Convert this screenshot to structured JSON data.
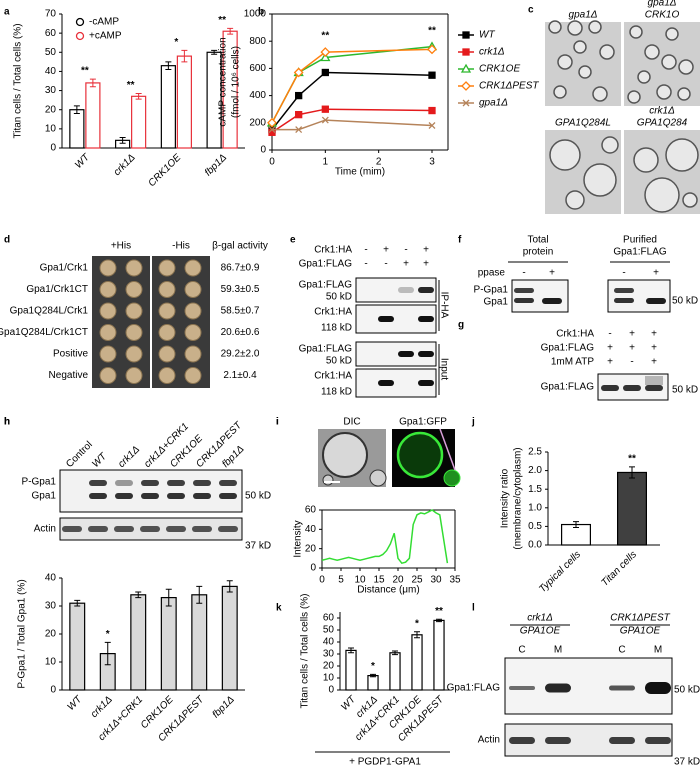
{
  "chart_data": [
    {
      "type": "bar",
      "panel": "a",
      "ylabel": "Titan cells / Total cells (%)",
      "categories": [
        "WT",
        "crk1Δ",
        "CRK1OE",
        "fbp1Δ"
      ],
      "series": [
        {
          "name": "-cAMP",
          "color": "#000000",
          "values": [
            20,
            4,
            43,
            50
          ],
          "errors": [
            2,
            1.5,
            2,
            1
          ]
        },
        {
          "name": "+cAMP",
          "color": "#e8303a",
          "values": [
            34,
            27,
            48,
            61
          ],
          "errors": [
            2,
            1.5,
            3,
            1.5
          ]
        }
      ],
      "fill": "#ffffff",
      "annotations": [
        "**",
        "**",
        "*",
        "**"
      ],
      "ylim": [
        0,
        70
      ],
      "yticks": [
        0,
        10,
        20,
        30,
        40,
        50,
        60,
        70
      ],
      "legend": "upper left"
    },
    {
      "type": "line",
      "panel": "b",
      "xlabel": "Time (mim)",
      "ylabel": [
        "cAMP concentration",
        "(fmol / 10⁶ cells)"
      ],
      "x": [
        0,
        0.5,
        1,
        3
      ],
      "series": [
        {
          "name": "WT",
          "color": "#000000",
          "marker": "square",
          "values": [
            150,
            400,
            570,
            550
          ]
        },
        {
          "name": "crk1Δ",
          "color": "#e41a1c",
          "marker": "square",
          "values": [
            130,
            260,
            300,
            290
          ]
        },
        {
          "name": "CRK1OE",
          "color": "#2db82d",
          "marker": "triangle",
          "values": [
            200,
            570,
            680,
            760
          ]
        },
        {
          "name": "CRK1ΔPEST",
          "color": "#ff7f0e",
          "marker": "diamond",
          "values": [
            200,
            570,
            720,
            740
          ]
        },
        {
          "name": "gpa1Δ",
          "color": "#b5835a",
          "marker": "x",
          "values": [
            150,
            150,
            220,
            180
          ]
        }
      ],
      "annotations": [
        null,
        null,
        "**",
        "**"
      ],
      "xlim": [
        0,
        3.3
      ],
      "xticks": [
        0,
        1,
        2,
        3
      ],
      "ylim": [
        0,
        1000
      ],
      "yticks": [
        0,
        200,
        400,
        600,
        800,
        1000
      ],
      "legend": "right"
    },
    {
      "type": "bar",
      "panel": "h",
      "ylabel": "P-Gpa1 / Total Gpa1 (%)",
      "categories": [
        "WT",
        "crk1Δ",
        "crk1Δ+CRK1",
        "CRK1OE",
        "CRK1ΔPEST",
        "fbp1Δ"
      ],
      "values": [
        31,
        13,
        34,
        33,
        34,
        37
      ],
      "errors": [
        1,
        4,
        1,
        3,
        3,
        2
      ],
      "color": "#000000",
      "fill": "#d9d9d9",
      "annotations": [
        null,
        "*",
        null,
        null,
        null,
        null
      ],
      "ylim": [
        0,
        40
      ],
      "yticks": [
        0,
        10,
        20,
        30,
        40
      ]
    },
    {
      "type": "line",
      "panel": "i",
      "xlabel": "Distance (μm)",
      "ylabel": "Intensity",
      "x": [
        0,
        1,
        2,
        3,
        4,
        5,
        6,
        7,
        8,
        9,
        10,
        11,
        12,
        13,
        14,
        15,
        16,
        17,
        18,
        19,
        20,
        21,
        22,
        23,
        24,
        25,
        26,
        27,
        28,
        29,
        30,
        31,
        32,
        33
      ],
      "series": [
        {
          "name": "Gpa1:GFP",
          "color": "#33dd33",
          "values": [
            8,
            9,
            10,
            9,
            8,
            9,
            10,
            11,
            10,
            9,
            8,
            9,
            10,
            11,
            12,
            12,
            14,
            18,
            25,
            36,
            10,
            5,
            6,
            10,
            45,
            55,
            57,
            56,
            58,
            60,
            57,
            55,
            30,
            5
          ]
        }
      ],
      "xlim": [
        0,
        35
      ],
      "xticks": [
        0,
        5,
        10,
        15,
        20,
        25,
        30,
        35
      ],
      "ylim": [
        0,
        60
      ],
      "yticks": [
        0,
        20,
        40,
        60
      ]
    },
    {
      "type": "bar",
      "panel": "j",
      "ylabel": [
        "Intensity ratio",
        "(membrane/cytoplasm)"
      ],
      "categories": [
        "Typical cells",
        "Titan cells"
      ],
      "values": [
        0.55,
        1.95
      ],
      "errors": [
        0.08,
        0.15
      ],
      "color": "#000000",
      "fills": [
        "#ffffff",
        "#404040"
      ],
      "annotations": [
        null,
        "**"
      ],
      "ylim": [
        0,
        2.5
      ],
      "yticks": [
        {
          "value": 0,
          "label": "0.0"
        },
        0.5,
        {
          "value": 1,
          "label": "1.0"
        },
        1.5,
        {
          "value": 2,
          "label": "2.0"
        },
        2.5
      ]
    },
    {
      "type": "bar",
      "panel": "k",
      "ylabel": "Titan cells / Total cells (%)",
      "note": "+ PGDP1-GPA1",
      "categories": [
        "WT",
        "crk1Δ",
        "crk1Δ+CRK1",
        "CRK1OE",
        "CRK1ΔPEST"
      ],
      "values": [
        33,
        12,
        31,
        46,
        58
      ],
      "errors": [
        2,
        1,
        1.5,
        2.5,
        1
      ],
      "color": "#000000",
      "fill": "#ffffff",
      "annotations": [
        null,
        "*",
        null,
        "*",
        "**"
      ],
      "ylim": [
        0,
        65
      ],
      "yticks": [
        0,
        10,
        20,
        30,
        40,
        50,
        60
      ]
    }
  ],
  "panels": {
    "c": {
      "letter": "c",
      "images": [
        [
          "gpa1Δ"
        ],
        [
          "gpa1Δ",
          "CRK1O"
        ],
        [
          "GPA1Q284L"
        ],
        [
          "crk1Δ",
          "GPA1Q284"
        ]
      ]
    },
    "d": {
      "letter": "d",
      "columns": [
        "+His",
        "-His",
        "β-gal activity"
      ],
      "rows": [
        [
          "Gpa1/Crk1",
          "86.7±0.9"
        ],
        [
          "Gpa1/Crk1CT",
          "59.3±0.5"
        ],
        [
          "Gpa1Q284L/Crk1",
          "58.5±0.7"
        ],
        [
          "Gpa1Q284L/Crk1CT",
          "20.6±0.6"
        ],
        [
          "Positive",
          "29.2±2.0"
        ],
        [
          "Negative",
          "2.1±0.4"
        ]
      ]
    },
    "e": {
      "letter": "e",
      "conditions": [
        {
          "label": "Crk1:HA",
          "signs": [
            "-",
            "+",
            "-",
            "+"
          ]
        },
        {
          "label": "Gpa1:FLAG",
          "signs": [
            "-",
            "-",
            "+",
            "+"
          ]
        }
      ],
      "blots": [
        {
          "label": "Gpa1:FLAG",
          "size": "50 kD"
        },
        {
          "label": "Crk1:HA",
          "size": "118 kD"
        },
        {
          "label": "Gpa1:FLAG",
          "size": "50 kD"
        },
        {
          "label": "Crk1:HA",
          "size": "118 kD"
        }
      ],
      "groups": [
        "IP-HA",
        "Input"
      ]
    },
    "f": {
      "letter": "f",
      "headers": [
        [
          "Total",
          "protein"
        ],
        [
          "Purified",
          "Gpa1:FLAG"
        ]
      ],
      "treatment": "ppase",
      "signs": [
        "-",
        "+",
        "-",
        "+"
      ],
      "bands": [
        "P-Gpa1",
        "Gpa1"
      ],
      "size": "50 kD"
    },
    "g": {
      "letter": "g",
      "conditions": [
        {
          "label": "Crk1:HA",
          "signs": [
            "-",
            "+",
            "+"
          ]
        },
        {
          "label": "Gpa1:FLAG",
          "signs": [
            "+",
            "+",
            "+"
          ]
        },
        {
          "label": "1mM ATP",
          "signs": [
            "+",
            "-",
            "+"
          ]
        }
      ],
      "blot": "Gpa1:FLAG",
      "size": "50 kD"
    },
    "h": {
      "letter": "h",
      "lanes": [
        "Control",
        "WT",
        "crk1Δ",
        "crk1Δ+CRK1",
        "CRK1OE",
        "CRK1ΔPEST",
        "fbp1Δ"
      ],
      "bands": [
        "P-Gpa1",
        "Gpa1"
      ],
      "size": "50 kD",
      "loading": "Actin",
      "loading_size": "37 kD"
    },
    "i": {
      "letter": "i",
      "images": [
        "DIC",
        "Gpa1:GFP"
      ]
    },
    "l": {
      "letter": "l",
      "headers": [
        [
          "crk1Δ",
          "GPA1OE"
        ],
        [
          "CRK1ΔPEST",
          "GPA1OE"
        ]
      ],
      "lanes": [
        "C",
        "M",
        "C",
        "M"
      ],
      "blot": "Gpa1:FLAG",
      "size": "50 kD",
      "loading": "Actin",
      "loading_size": "37 kD"
    }
  }
}
